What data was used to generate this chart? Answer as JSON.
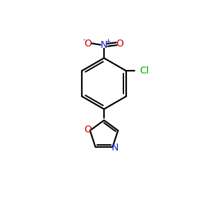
{
  "background_color": "#ffffff",
  "bond_color": "#000000",
  "atom_colors": {
    "N": "#2222cc",
    "O": "#cc0000",
    "Cl": "#00aa00",
    "C": "#000000"
  },
  "figsize": [
    3.0,
    3.0
  ],
  "dpi": 100
}
